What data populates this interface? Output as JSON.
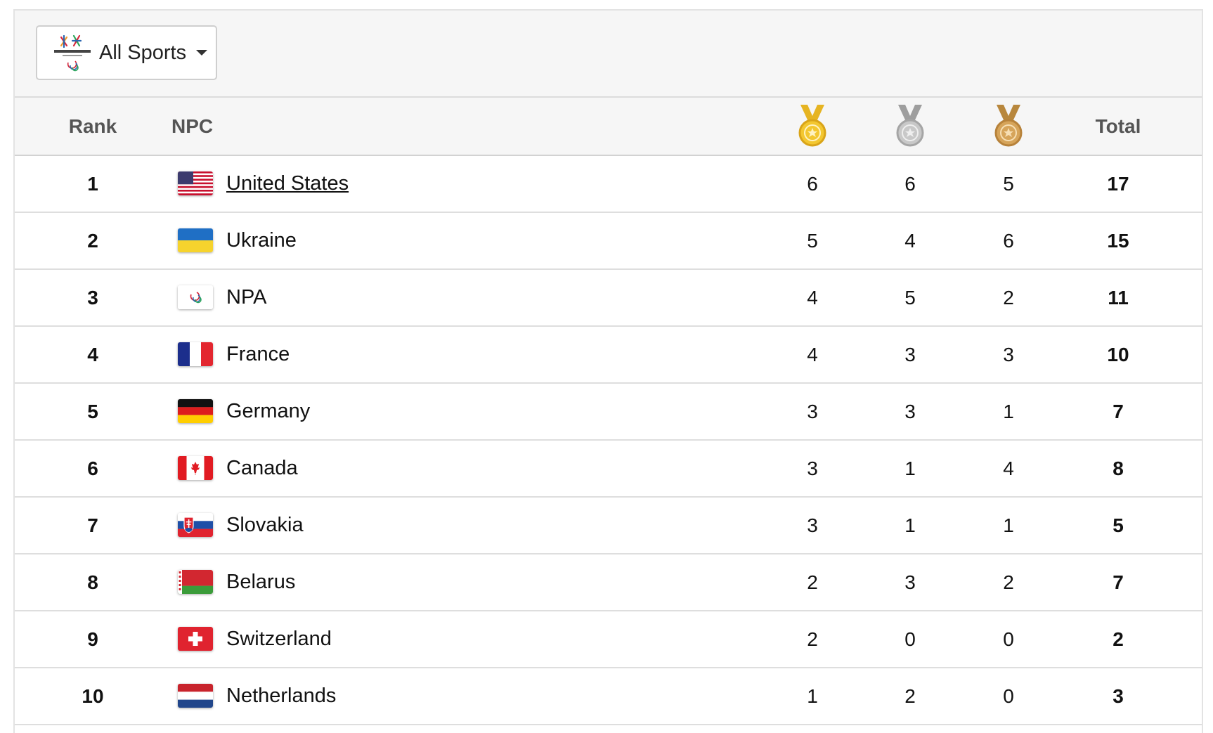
{
  "toolbar": {
    "sport_filter_label": "All Sports",
    "games_logo_icon": "pyeongchang-2018-paralympic-logo"
  },
  "table": {
    "headers": {
      "rank": "Rank",
      "npc": "NPC",
      "gold_icon": "gold-medal-icon",
      "silver_icon": "silver-medal-icon",
      "bronze_icon": "bronze-medal-icon",
      "total": "Total"
    },
    "rows": [
      {
        "rank": "1",
        "npc": "United States",
        "flag": "flag-united-states",
        "gold": "6",
        "silver": "6",
        "bronze": "5",
        "total": "17",
        "linked": true
      },
      {
        "rank": "2",
        "npc": "Ukraine",
        "flag": "flag-ukraine",
        "gold": "5",
        "silver": "4",
        "bronze": "6",
        "total": "15"
      },
      {
        "rank": "3",
        "npc": "NPA",
        "flag": "flag-npa-paralympic",
        "gold": "4",
        "silver": "5",
        "bronze": "2",
        "total": "11"
      },
      {
        "rank": "4",
        "npc": "France",
        "flag": "flag-france",
        "gold": "4",
        "silver": "3",
        "bronze": "3",
        "total": "10"
      },
      {
        "rank": "5",
        "npc": "Germany",
        "flag": "flag-germany",
        "gold": "3",
        "silver": "3",
        "bronze": "1",
        "total": "7"
      },
      {
        "rank": "6",
        "npc": "Canada",
        "flag": "flag-canada",
        "gold": "3",
        "silver": "1",
        "bronze": "4",
        "total": "8"
      },
      {
        "rank": "7",
        "npc": "Slovakia",
        "flag": "flag-slovakia",
        "gold": "3",
        "silver": "1",
        "bronze": "1",
        "total": "5"
      },
      {
        "rank": "8",
        "npc": "Belarus",
        "flag": "flag-belarus",
        "gold": "2",
        "silver": "3",
        "bronze": "2",
        "total": "7"
      },
      {
        "rank": "9",
        "npc": "Switzerland",
        "flag": "flag-switzerland",
        "gold": "2",
        "silver": "0",
        "bronze": "0",
        "total": "2"
      },
      {
        "rank": "10",
        "npc": "Netherlands",
        "flag": "flag-netherlands",
        "gold": "1",
        "silver": "2",
        "bronze": "0",
        "total": "3"
      }
    ]
  },
  "colors": {
    "gold": "#e6b422",
    "silver": "#b4b4b4",
    "bronze": "#c8964b",
    "header_bg": "#f6f6f6"
  }
}
